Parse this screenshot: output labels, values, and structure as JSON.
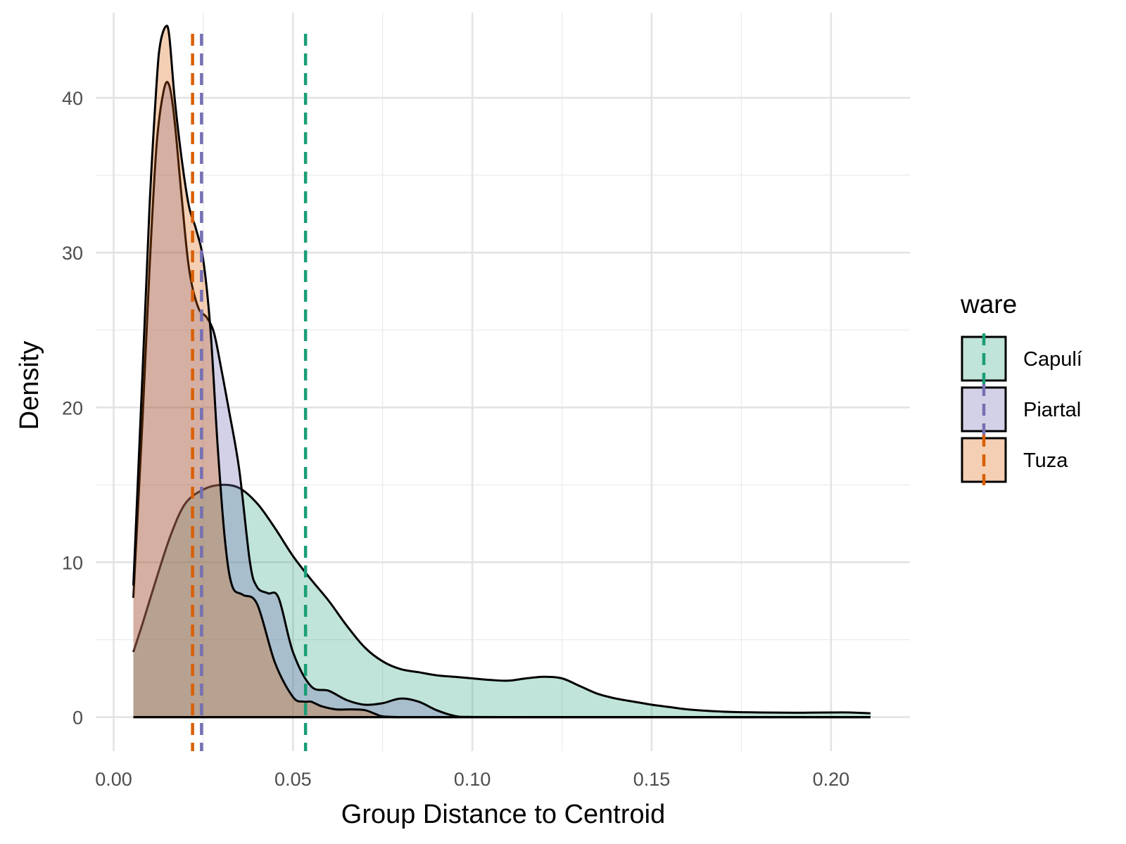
{
  "chart_data": {
    "type": "area",
    "xlabel": "Group Distance to Centroid",
    "ylabel": "Density",
    "xlim": [
      -0.005,
      0.222
    ],
    "ylim": [
      -2.2,
      45.5
    ],
    "x_ticks": [
      0.0,
      0.05,
      0.1,
      0.15,
      0.2
    ],
    "x_tick_labels": [
      "0.00",
      "0.05",
      "0.10",
      "0.15",
      "0.20"
    ],
    "y_ticks": [
      0,
      10,
      20,
      30,
      40
    ],
    "y_tick_labels": [
      "0",
      "10",
      "20",
      "30",
      "40"
    ],
    "x_minor_ticks": [
      0.025,
      0.075,
      0.125,
      0.175
    ],
    "y_minor_ticks": [
      5,
      15,
      25,
      35
    ],
    "grid": true,
    "legend": {
      "title": "ware",
      "position": "right"
    },
    "series": [
      {
        "name": "Capulí",
        "fill": "#1b9e77",
        "fill_opacity": 0.28,
        "mean": 0.0535,
        "x": [
          0.0055,
          0.008,
          0.012,
          0.016,
          0.02,
          0.025,
          0.03,
          0.035,
          0.04,
          0.045,
          0.05,
          0.055,
          0.06,
          0.065,
          0.07,
          0.075,
          0.08,
          0.085,
          0.09,
          0.095,
          0.1,
          0.105,
          0.11,
          0.115,
          0.12,
          0.125,
          0.13,
          0.135,
          0.14,
          0.145,
          0.15,
          0.155,
          0.16,
          0.17,
          0.18,
          0.19,
          0.2,
          0.205,
          0.211
        ],
        "y": [
          4.2,
          6.0,
          9.0,
          11.8,
          13.8,
          14.7,
          15.0,
          14.8,
          13.8,
          12.2,
          10.4,
          8.9,
          7.5,
          5.9,
          4.5,
          3.6,
          3.1,
          2.9,
          2.7,
          2.6,
          2.5,
          2.4,
          2.35,
          2.5,
          2.6,
          2.5,
          2.0,
          1.5,
          1.2,
          1.0,
          0.8,
          0.65,
          0.5,
          0.35,
          0.3,
          0.28,
          0.3,
          0.3,
          0.25
        ]
      },
      {
        "name": "Piartal",
        "fill": "#7570b3",
        "fill_opacity": 0.32,
        "mean": 0.0245,
        "x": [
          0.0055,
          0.008,
          0.01,
          0.012,
          0.014,
          0.0155,
          0.017,
          0.019,
          0.021,
          0.0235,
          0.026,
          0.028,
          0.03,
          0.032,
          0.035,
          0.038,
          0.04,
          0.043,
          0.046,
          0.05,
          0.055,
          0.06,
          0.065,
          0.07,
          0.075,
          0.08,
          0.085,
          0.09,
          0.095,
          0.1,
          0.12,
          0.15,
          0.18,
          0.211
        ],
        "y": [
          7.7,
          19.0,
          29.0,
          37.0,
          40.5,
          40.8,
          38.5,
          33.5,
          29.0,
          26.5,
          25.8,
          24.8,
          22.5,
          20.0,
          16.0,
          10.0,
          8.4,
          8.0,
          7.7,
          4.2,
          2.0,
          1.7,
          1.1,
          0.8,
          0.9,
          1.2,
          1.0,
          0.45,
          0.08,
          0.01,
          0.0,
          0.0,
          0.0,
          0.0
        ]
      },
      {
        "name": "Tuza",
        "fill": "#d95f02",
        "fill_opacity": 0.3,
        "mean": 0.022,
        "x": [
          0.0055,
          0.008,
          0.01,
          0.012,
          0.013,
          0.0145,
          0.0155,
          0.017,
          0.019,
          0.021,
          0.023,
          0.025,
          0.027,
          0.029,
          0.031,
          0.033,
          0.036,
          0.04,
          0.045,
          0.05,
          0.053,
          0.055,
          0.058,
          0.062,
          0.066,
          0.07,
          0.073,
          0.075,
          0.08,
          0.09,
          0.211
        ],
        "y": [
          8.5,
          22.0,
          33.0,
          41.0,
          43.5,
          44.6,
          44.0,
          40.0,
          36.0,
          33.0,
          31.5,
          29.5,
          25.0,
          17.5,
          11.5,
          8.5,
          7.9,
          7.3,
          3.5,
          1.3,
          1.0,
          1.0,
          0.7,
          0.5,
          0.5,
          0.45,
          0.2,
          0.05,
          0.0,
          0.0,
          0.0
        ]
      }
    ]
  }
}
